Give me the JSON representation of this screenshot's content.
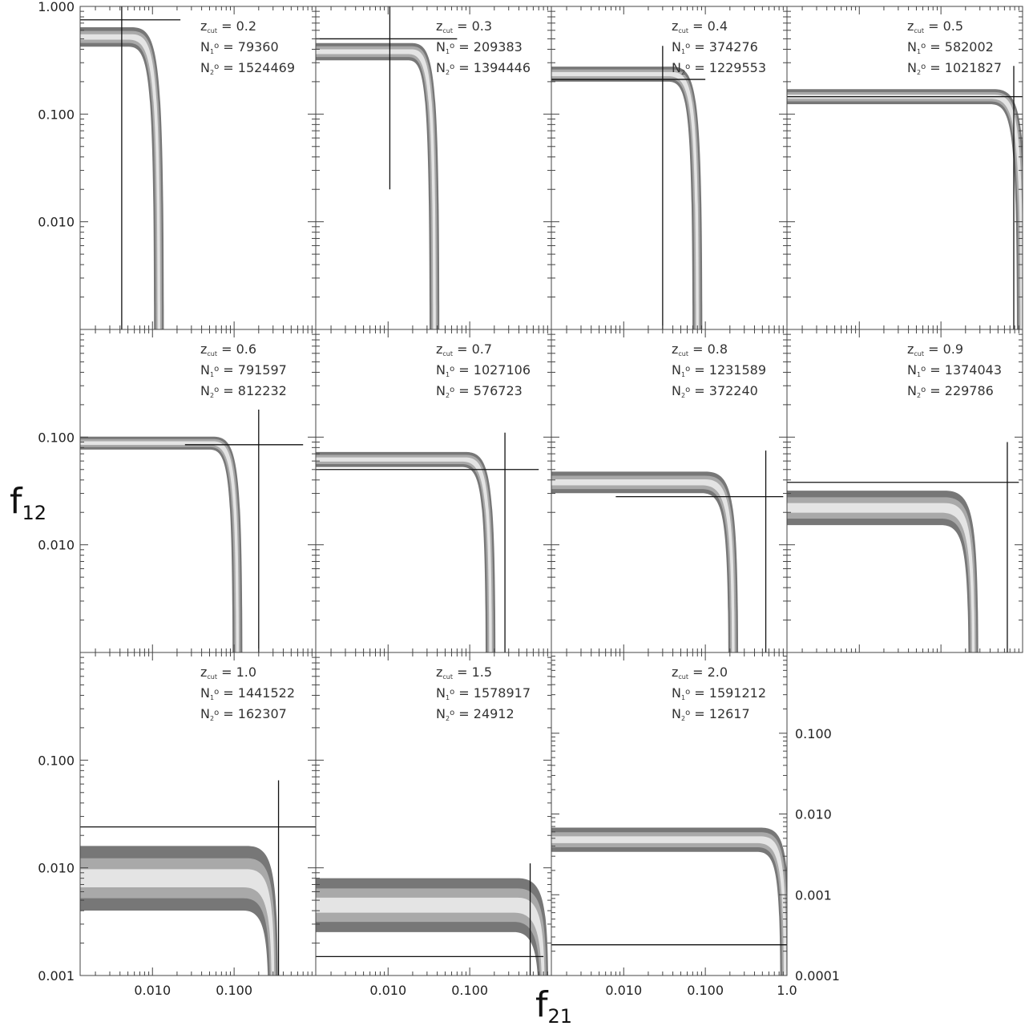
{
  "chart_data": {
    "type": "area",
    "xlabel": "f",
    "xlabel_sub": "21",
    "ylabel": "f",
    "ylabel_sub": "12",
    "xscale": "log",
    "yscale": "log",
    "shared_xlim": [
      0.0013,
      1.0
    ],
    "x_tick_labels": [
      "0.010",
      "0.100"
    ],
    "x_tick_label_last_column": [
      "0.010",
      "0.100",
      "1.0"
    ],
    "y_tick_labels_top_row": [
      "1.000",
      "0.100",
      "0.010"
    ],
    "y_tick_labels_other_rows": [
      "0.100",
      "0.010"
    ],
    "y_tick_label_bottom_corner": "0.001",
    "right_axis_tick_labels": [
      "0.100",
      "0.010",
      "0.001",
      "0.0001"
    ],
    "colors": {
      "band_outer": "#777777",
      "band_mid": "#a9a9a9",
      "band_inner": "#e4e4e4",
      "line": "#111111"
    },
    "annotation_labels": {
      "z": "z",
      "z_sub": "cut",
      "n1": "N",
      "n1_sub": "1",
      "n2": "N",
      "n2_sub": "2",
      "sup": "o"
    },
    "panels": [
      {
        "z_cut": "0.2",
        "N1": "79360",
        "N2": "1524469",
        "ylim": [
          0.001,
          1.0
        ],
        "plateau_y": 0.52,
        "band_width_dex": 0.09,
        "knee_x": 0.01,
        "fall_x": 0.012,
        "ref_x": 0.0042,
        "ref_y": 0.75,
        "ref_hx": [
          0.0013,
          0.022
        ],
        "ref_vy": [
          0.001,
          1.0
        ]
      },
      {
        "z_cut": "0.3",
        "N1": "209383",
        "N2": "1394446",
        "ylim": [
          0.001,
          1.0
        ],
        "plateau_y": 0.38,
        "band_width_dex": 0.08,
        "knee_x": 0.035,
        "fall_x": 0.037,
        "ref_x": 0.0105,
        "ref_y": 0.5,
        "ref_hx": [
          0.0013,
          0.07
        ],
        "ref_vy": [
          0.02,
          1.0
        ]
      },
      {
        "z_cut": "0.4",
        "N1": "374276",
        "N2": "1229553",
        "ylim": [
          0.001,
          1.0
        ],
        "plateau_y": 0.235,
        "band_width_dex": 0.07,
        "knee_x": 0.07,
        "fall_x": 0.08,
        "ref_x": 0.03,
        "ref_y": 0.21,
        "ref_hx": [
          0.0013,
          0.1
        ],
        "ref_vy": [
          0.001,
          0.43
        ]
      },
      {
        "z_cut": "0.5",
        "N1": "582002",
        "N2": "1021827",
        "ylim": [
          0.001,
          1.0
        ],
        "plateau_y": 0.145,
        "band_width_dex": 0.07,
        "knee_x": 0.8,
        "fall_x": 0.98,
        "ref_x": 0.78,
        "ref_y": 0.145,
        "ref_hx": [
          0.0013,
          25.0
        ],
        "ref_vy": [
          0.001,
          0.28
        ]
      },
      {
        "z_cut": "0.6",
        "N1": "791597",
        "N2": "812232",
        "ylim": [
          0.001,
          1.0
        ],
        "plateau_y": 0.088,
        "band_width_dex": 0.06,
        "knee_x": 0.1,
        "fall_x": 0.11,
        "ref_x": 0.2,
        "ref_y": 0.085,
        "ref_hx": [
          0.025,
          0.7
        ],
        "ref_vy": [
          0.001,
          0.18
        ]
      },
      {
        "z_cut": "0.7",
        "N1": "1027106",
        "N2": "576723",
        "ylim": [
          0.001,
          1.0
        ],
        "plateau_y": 0.062,
        "band_width_dex": 0.07,
        "knee_x": 0.16,
        "fall_x": 0.18,
        "ref_x": 0.27,
        "ref_y": 0.05,
        "ref_hx": [
          0.0013,
          0.7
        ],
        "ref_vy": [
          0.001,
          0.11
        ]
      },
      {
        "z_cut": "0.8",
        "N1": "1231589",
        "N2": "372240",
        "ylim": [
          0.001,
          1.0
        ],
        "plateau_y": 0.038,
        "band_width_dex": 0.1,
        "knee_x": 0.18,
        "fall_x": 0.22,
        "ref_x": 0.55,
        "ref_y": 0.028,
        "ref_hx": [
          0.008,
          0.9
        ],
        "ref_vy": [
          0.001,
          0.075
        ]
      },
      {
        "z_cut": "0.9",
        "N1": "1374043",
        "N2": "229786",
        "ylim": [
          0.001,
          1.0
        ],
        "plateau_y": 0.022,
        "band_width_dex": 0.16,
        "knee_x": 0.2,
        "fall_x": 0.25,
        "ref_x": 0.65,
        "ref_y": 0.038,
        "ref_hx": [
          0.0013,
          0.9
        ],
        "ref_vy": [
          0.001,
          0.09
        ]
      },
      {
        "z_cut": "1.0",
        "N1": "1441522",
        "N2": "162307",
        "ylim": [
          0.001,
          1.0
        ],
        "plateau_y": 0.008,
        "band_width_dex": 0.3,
        "knee_x": 0.26,
        "fall_x": 0.3,
        "ref_x": 0.35,
        "ref_y": 0.024,
        "ref_hx": [
          0.0013,
          1.0
        ],
        "ref_vy": [
          0.001,
          0.065
        ]
      },
      {
        "z_cut": "1.5",
        "N1": "1578917",
        "N2": "24912",
        "ylim": [
          0.001,
          1.0
        ],
        "plateau_y": 0.0045,
        "band_width_dex": 0.25,
        "knee_x": 0.7,
        "fall_x": 0.8,
        "ref_x": 0.55,
        "ref_y": 0.0015,
        "ref_hx": [
          0.0013,
          0.8
        ],
        "ref_vy": [
          0.001,
          0.011
        ]
      },
      {
        "z_cut": "2.0",
        "N1": "1591212",
        "N2": "12617",
        "ylim": [
          0.0001,
          1.0
        ],
        "plateau_y": 0.0048,
        "band_width_dex": 0.15,
        "knee_x": 0.85,
        "fall_x": 0.95,
        "ref_x": null,
        "ref_y": 0.00024,
        "ref_hx": [
          0.0013,
          1.0
        ],
        "ref_vy": null
      }
    ]
  }
}
